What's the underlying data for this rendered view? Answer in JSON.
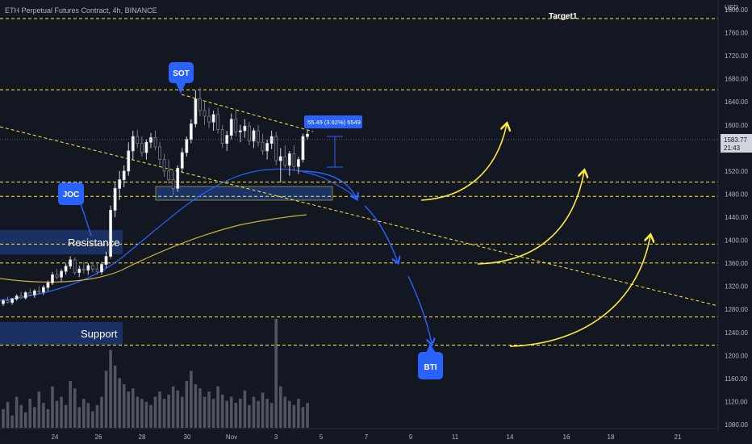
{
  "header": {
    "title": "ETH Perpetual Futures Contract, 4h, BINANCE",
    "currency": "USD"
  },
  "chart_data": {
    "type": "candlestick",
    "symbol": "ETH Perpetual Futures Contract",
    "interval": "4h",
    "exchange": "BINANCE",
    "y_ticks": [
      "1800.00",
      "1760.00",
      "1720.00",
      "1680.00",
      "1640.00",
      "1600.00",
      "1560.00",
      "1520.00",
      "1480.00",
      "1440.00",
      "1400.00",
      "1360.00",
      "1320.00",
      "1280.00",
      "1240.00",
      "1200.00",
      "1160.00",
      "1120.00",
      "1080.00"
    ],
    "x_ticks": [
      "24",
      "26",
      "28",
      "30",
      "Nov",
      "3",
      "5",
      "7",
      "9",
      "11",
      "14",
      "16",
      "18",
      "21"
    ],
    "current_price": {
      "value": "1583.77",
      "countdown": "21:43"
    },
    "levels": [
      {
        "value": 1784.6,
        "label": "1784.60"
      },
      {
        "value": 1660.9,
        "label": "1660.90"
      },
      {
        "value": 1500.98,
        "label": "1500.98"
      },
      {
        "value": 1475.99,
        "label": "1475.99"
      },
      {
        "value": 1393.33,
        "label": "1393.33"
      },
      {
        "value": 1360.53,
        "label": "1360.53"
      },
      {
        "value": 1266.81,
        "label": "1266.81"
      },
      {
        "value": 1218.05,
        "label": "1218.05"
      }
    ],
    "annotations": {
      "target": "Target1",
      "resistance": "Resistance",
      "support": "Support",
      "sot": "SOT",
      "joc": "JOC",
      "bti": "BTI",
      "measure": "55.49 (3.62%) 5549"
    },
    "candles": [
      [
        1290,
        1298,
        1286,
        1295
      ],
      [
        1295,
        1302,
        1290,
        1292
      ],
      [
        1292,
        1300,
        1288,
        1298
      ],
      [
        1298,
        1306,
        1295,
        1303
      ],
      [
        1303,
        1310,
        1298,
        1300
      ],
      [
        1300,
        1312,
        1297,
        1309
      ],
      [
        1309,
        1316,
        1303,
        1305
      ],
      [
        1305,
        1315,
        1300,
        1312
      ],
      [
        1312,
        1320,
        1306,
        1310
      ],
      [
        1310,
        1322,
        1305,
        1318
      ],
      [
        1318,
        1330,
        1312,
        1326
      ],
      [
        1326,
        1345,
        1322,
        1340
      ],
      [
        1340,
        1350,
        1332,
        1336
      ],
      [
        1336,
        1350,
        1328,
        1346
      ],
      [
        1346,
        1360,
        1340,
        1355
      ],
      [
        1355,
        1372,
        1350,
        1366
      ],
      [
        1366,
        1370,
        1340,
        1344
      ],
      [
        1344,
        1356,
        1336,
        1350
      ],
      [
        1350,
        1362,
        1342,
        1348
      ],
      [
        1348,
        1360,
        1340,
        1356
      ],
      [
        1356,
        1362,
        1344,
        1350
      ],
      [
        1350,
        1360,
        1340,
        1345
      ],
      [
        1345,
        1362,
        1340,
        1358
      ],
      [
        1358,
        1380,
        1352,
        1372
      ],
      [
        1372,
        1460,
        1368,
        1452
      ],
      [
        1452,
        1500,
        1440,
        1490
      ],
      [
        1490,
        1520,
        1470,
        1505
      ],
      [
        1505,
        1530,
        1492,
        1520
      ],
      [
        1520,
        1570,
        1512,
        1555
      ],
      [
        1555,
        1590,
        1540,
        1580
      ],
      [
        1580,
        1592,
        1560,
        1568
      ],
      [
        1568,
        1580,
        1545,
        1552
      ],
      [
        1552,
        1575,
        1540,
        1570
      ],
      [
        1570,
        1586,
        1560,
        1578
      ],
      [
        1578,
        1590,
        1556,
        1562
      ],
      [
        1562,
        1570,
        1530,
        1540
      ],
      [
        1540,
        1550,
        1510,
        1520
      ],
      [
        1520,
        1540,
        1498,
        1505
      ],
      [
        1505,
        1520,
        1478,
        1490
      ],
      [
        1490,
        1530,
        1484,
        1525
      ],
      [
        1525,
        1560,
        1518,
        1552
      ],
      [
        1552,
        1580,
        1545,
        1575
      ],
      [
        1575,
        1610,
        1568,
        1602
      ],
      [
        1602,
        1660,
        1596,
        1645
      ],
      [
        1645,
        1665,
        1615,
        1625
      ],
      [
        1625,
        1640,
        1600,
        1615
      ],
      [
        1615,
        1630,
        1595,
        1605
      ],
      [
        1605,
        1625,
        1590,
        1618
      ],
      [
        1618,
        1630,
        1585,
        1592
      ],
      [
        1592,
        1600,
        1560,
        1568
      ],
      [
        1568,
        1590,
        1555,
        1582
      ],
      [
        1582,
        1620,
        1575,
        1610
      ],
      [
        1610,
        1625,
        1580,
        1588
      ],
      [
        1588,
        1600,
        1570,
        1590
      ],
      [
        1590,
        1610,
        1578,
        1598
      ],
      [
        1598,
        1605,
        1565,
        1572
      ],
      [
        1572,
        1595,
        1560,
        1590
      ],
      [
        1590,
        1600,
        1562,
        1570
      ],
      [
        1570,
        1585,
        1548,
        1555
      ],
      [
        1555,
        1575,
        1540,
        1568
      ],
      [
        1568,
        1590,
        1558,
        1580
      ],
      [
        1580,
        1588,
        1530,
        1538
      ],
      [
        1538,
        1560,
        1500,
        1545
      ],
      [
        1545,
        1565,
        1525,
        1530
      ],
      [
        1530,
        1555,
        1512,
        1550
      ],
      [
        1550,
        1565,
        1520,
        1528
      ],
      [
        1528,
        1545,
        1515,
        1540
      ],
      [
        1540,
        1585,
        1535,
        1580
      ],
      [
        1580,
        1590,
        1575,
        1584
      ]
    ],
    "volumes": [
      18,
      25,
      12,
      30,
      22,
      15,
      28,
      20,
      35,
      24,
      18,
      40,
      26,
      30,
      22,
      45,
      38,
      20,
      28,
      24,
      16,
      22,
      30,
      55,
      75,
      60,
      48,
      42,
      35,
      38,
      30,
      28,
      25,
      22,
      30,
      35,
      28,
      32,
      40,
      36,
      30,
      45,
      55,
      42,
      38,
      30,
      35,
      28,
      40,
      32,
      26,
      30,
      24,
      28,
      36,
      22,
      30,
      26,
      34,
      28,
      24,
      105,
      40,
      30,
      26,
      22,
      28,
      20,
      24
    ]
  }
}
